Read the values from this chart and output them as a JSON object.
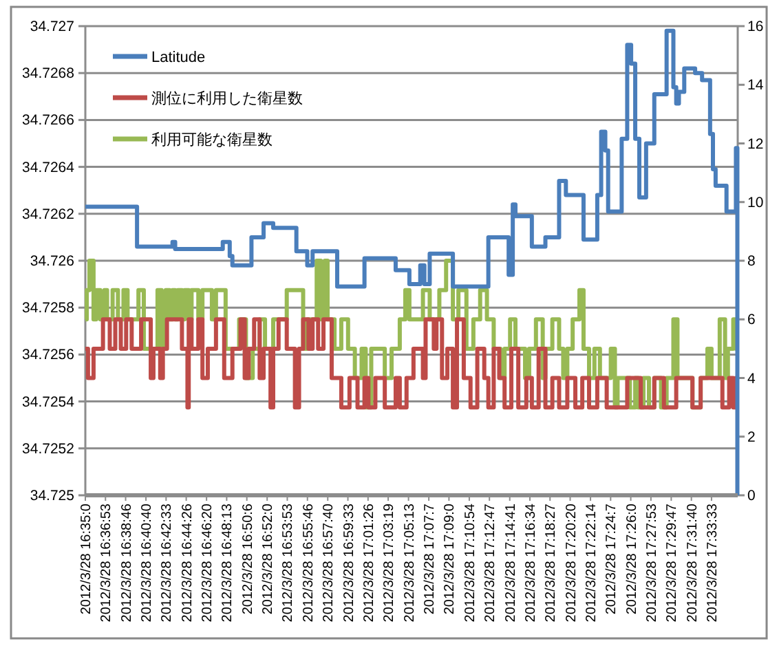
{
  "chart_data": {
    "type": "step",
    "legend": "top left",
    "grid": "y",
    "xlim": [
      "2012-03-28T16:35:00",
      "2012-03-28T17:36:00"
    ],
    "ylim": [
      34.725,
      34.727
    ],
    "y2lim": [
      0,
      16
    ],
    "yticks": [
      34.725,
      34.7252,
      34.7254,
      34.7256,
      34.7258,
      34.726,
      34.7262,
      34.7264,
      34.7266,
      34.7268,
      34.727
    ],
    "y2ticks": [
      0,
      2,
      4,
      6,
      8,
      10,
      12,
      14,
      16
    ],
    "xticks": [
      {
        "value": "2012-03-28T16:35:00",
        "label": "2012/3/28 16:35:0"
      },
      {
        "value": "2012-03-28T16:36:53",
        "label": "2012/3/28 16:36:53"
      },
      {
        "value": "2012-03-28T16:38:46",
        "label": "2012/3/28 16:38:46"
      },
      {
        "value": "2012-03-28T16:40:40",
        "label": "2012/3/28 16:40:40"
      },
      {
        "value": "2012-03-28T16:42:33",
        "label": "2012/3/28 16:42:33"
      },
      {
        "value": "2012-03-28T16:44:26",
        "label": "2012/3/28 16:44:26"
      },
      {
        "value": "2012-03-28T16:46:20",
        "label": "2012/3/28 16:46:20"
      },
      {
        "value": "2012-03-28T16:48:13",
        "label": "2012/3/28 16:48:13"
      },
      {
        "value": "2012-03-28T16:50:06",
        "label": "2012/3/28 16:50:6"
      },
      {
        "value": "2012-03-28T16:52:00",
        "label": "2012/3/28 16:52:0"
      },
      {
        "value": "2012-03-28T16:53:53",
        "label": "2012/3/28 16:53:53"
      },
      {
        "value": "2012-03-28T16:55:46",
        "label": "2012/3/28 16:55:46"
      },
      {
        "value": "2012-03-28T16:57:40",
        "label": "2012/3/28 16:57:40"
      },
      {
        "value": "2012-03-28T16:59:33",
        "label": "2012/3/28 16:59:33"
      },
      {
        "value": "2012-03-28T17:01:26",
        "label": "2012/3/28 17:01:26"
      },
      {
        "value": "2012-03-28T17:03:19",
        "label": "2012/3/28 17:03:19"
      },
      {
        "value": "2012-03-28T17:05:13",
        "label": "2012/3/28 17:05:13"
      },
      {
        "value": "2012-03-28T17:07:07",
        "label": "2012/3/28 17:07:7"
      },
      {
        "value": "2012-03-28T17:09:00",
        "label": "2012/3/28 17:09:0"
      },
      {
        "value": "2012-03-28T17:10:54",
        "label": "2012/3/28 17:10:54"
      },
      {
        "value": "2012-03-28T17:12:47",
        "label": "2012/3/28 17:12:47"
      },
      {
        "value": "2012-03-28T17:14:41",
        "label": "2012/3/28 17:14:41"
      },
      {
        "value": "2012-03-28T17:16:34",
        "label": "2012/3/28 17:16:34"
      },
      {
        "value": "2012-03-28T17:18:27",
        "label": "2012/3/28 17:18:27"
      },
      {
        "value": "2012-03-28T17:20:20",
        "label": "2012/3/28 17:20:20"
      },
      {
        "value": "2012-03-28T17:22:14",
        "label": "2012/3/28 17:22:14"
      },
      {
        "value": "2012-03-28T17:24:07",
        "label": "2012/3/28 17:24:7"
      },
      {
        "value": "2012-03-28T17:26:00",
        "label": "2012/3/28 17:26:0"
      },
      {
        "value": "2012-03-28T17:27:53",
        "label": "2012/3/28 17:27:53"
      },
      {
        "value": "2012-03-28T17:29:47",
        "label": "2012/3/28 17:29:47"
      },
      {
        "value": "2012-03-28T17:31:40",
        "label": "2012/3/28 17:31:40"
      },
      {
        "value": "2012-03-28T17:33:33",
        "label": "2012/3/28 17:33:33"
      }
    ],
    "series": [
      {
        "name": "Latitude",
        "color": "#4a7ebb",
        "x": [
          "2012-03-28T16:35:00",
          "2012-03-28T16:39:50",
          "2012-03-28T16:43:09",
          "2012-03-28T16:43:24",
          "2012-03-28T16:47:51",
          "2012-03-28T16:48:30",
          "2012-03-28T16:48:45",
          "2012-03-28T16:50:32",
          "2012-03-28T16:51:40",
          "2012-03-28T16:52:34",
          "2012-03-28T16:54:44",
          "2012-03-28T16:55:45",
          "2012-03-28T16:56:15",
          "2012-03-28T16:58:33",
          "2012-03-28T17:01:06",
          "2012-03-28T17:04:01",
          "2012-03-28T17:05:18",
          "2012-03-28T17:06:19",
          "2012-03-28T17:06:42",
          "2012-03-28T17:07:12",
          "2012-03-28T17:09:22",
          "2012-03-28T17:12:41",
          "2012-03-28T17:14:35",
          "2012-03-28T17:14:58",
          "2012-03-28T17:15:13",
          "2012-03-28T17:16:45",
          "2012-03-28T17:18:01",
          "2012-03-28T17:19:18",
          "2012-03-28T17:19:56",
          "2012-03-28T17:21:35",
          "2012-03-28T17:22:52",
          "2012-03-28T17:23:14",
          "2012-03-28T17:23:37",
          "2012-03-28T17:23:53",
          "2012-03-28T17:25:09",
          "2012-03-28T17:25:40",
          "2012-03-28T17:26:02",
          "2012-03-28T17:26:25",
          "2012-03-28T17:26:48",
          "2012-03-28T17:27:26",
          "2012-03-28T17:28:12",
          "2012-03-28T17:29:21",
          "2012-03-28T17:29:59",
          "2012-03-28T17:30:15",
          "2012-03-28T17:30:30",
          "2012-03-28T17:31:00",
          "2012-03-28T17:32:01",
          "2012-03-28T17:32:40",
          "2012-03-28T17:33:25",
          "2012-03-28T17:33:41",
          "2012-03-28T17:33:56",
          "2012-03-28T17:34:57",
          "2012-03-28T17:35:50",
          "2012-03-28T17:35:58"
        ],
        "values": [
          34.72623,
          34.72606,
          34.72608,
          34.72605,
          34.72608,
          34.72602,
          34.72598,
          34.7261,
          34.72616,
          34.72614,
          34.72604,
          34.72598,
          34.72604,
          34.72589,
          34.72601,
          34.72596,
          34.7259,
          34.72598,
          34.7259,
          34.72603,
          34.72589,
          34.7261,
          34.72594,
          34.72624,
          34.72619,
          34.72606,
          34.7261,
          34.72634,
          34.72628,
          34.72609,
          34.72628,
          34.72655,
          34.72647,
          34.72621,
          34.72652,
          34.72692,
          34.72684,
          34.72652,
          34.72627,
          34.7265,
          34.72671,
          34.72698,
          34.72674,
          34.72667,
          34.72672,
          34.72682,
          34.7268,
          34.72677,
          34.72654,
          34.72639,
          34.72632,
          34.72621,
          34.72648,
          34.725
        ]
      },
      {
        "name": "測位に利用した衛星数",
        "color": "#be4b48",
        "axis": "y2",
        "x": [
          "2012-03-28T16:35:00",
          "2012-03-28T16:35:15",
          "2012-03-28T16:35:46",
          "2012-03-28T16:36:39",
          "2012-03-28T16:37:17",
          "2012-03-28T16:37:48",
          "2012-03-28T16:38:19",
          "2012-03-28T16:38:49",
          "2012-03-28T16:39:20",
          "2012-03-28T16:40:13",
          "2012-03-28T16:41:07",
          "2012-03-28T16:41:22",
          "2012-03-28T16:42:00",
          "2012-03-28T16:42:15",
          "2012-03-28T16:42:38",
          "2012-03-28T16:44:02",
          "2012-03-28T16:44:33",
          "2012-03-28T16:44:40",
          "2012-03-28T16:44:56",
          "2012-03-28T16:45:34",
          "2012-03-28T16:45:57",
          "2012-03-28T16:46:27",
          "2012-03-28T16:47:13",
          "2012-03-28T16:47:59",
          "2012-03-28T16:48:45",
          "2012-03-28T16:49:31",
          "2012-03-28T16:49:54",
          "2012-03-28T16:50:16",
          "2012-03-28T16:50:47",
          "2012-03-28T16:51:18",
          "2012-03-28T16:51:40",
          "2012-03-28T16:52:19",
          "2012-03-28T16:52:34",
          "2012-03-28T16:53:04",
          "2012-03-28T16:53:50",
          "2012-03-28T16:54:36",
          "2012-03-28T16:54:59",
          "2012-03-28T16:55:22",
          "2012-03-28T16:55:52",
          "2012-03-28T16:56:15",
          "2012-03-28T16:56:46",
          "2012-03-28T16:57:16",
          "2012-03-28T16:58:02",
          "2012-03-28T16:58:56",
          "2012-03-28T16:59:42",
          "2012-03-28T17:00:27",
          "2012-03-28T17:01:06",
          "2012-03-28T17:01:28",
          "2012-03-28T17:02:07",
          "2012-03-28T17:03:00",
          "2012-03-28T17:04:01",
          "2012-03-28T17:04:24",
          "2012-03-28T17:05:02",
          "2012-03-28T17:05:41",
          "2012-03-28T17:06:34",
          "2012-03-28T17:06:49",
          "2012-03-28T17:07:35",
          "2012-03-28T17:07:50",
          "2012-03-28T17:08:21",
          "2012-03-28T17:08:51",
          "2012-03-28T17:09:22",
          "2012-03-28T17:09:45",
          "2012-03-28T17:10:23",
          "2012-03-28T17:11:01",
          "2012-03-28T17:11:39",
          "2012-03-28T17:12:18",
          "2012-03-28T17:12:41",
          "2012-03-28T17:13:11",
          "2012-03-28T17:13:42",
          "2012-03-28T17:14:12",
          "2012-03-28T17:14:50",
          "2012-03-28T17:15:29",
          "2012-03-28T17:16:14",
          "2012-03-28T17:16:45",
          "2012-03-28T17:17:23",
          "2012-03-28T17:18:01",
          "2012-03-28T17:18:40",
          "2012-03-28T17:19:18",
          "2012-03-28T17:20:04",
          "2012-03-28T17:20:49",
          "2012-03-28T17:21:28",
          "2012-03-28T17:22:06",
          "2012-03-28T17:22:52",
          "2012-03-28T17:23:45",
          "2012-03-28T17:25:40",
          "2012-03-28T17:26:56",
          "2012-03-28T17:28:12",
          "2012-03-28T17:29:06",
          "2012-03-28T17:30:15",
          "2012-03-28T17:31:46",
          "2012-03-28T17:32:32",
          "2012-03-28T17:34:34",
          "2012-03-28T17:35:12",
          "2012-03-28T17:35:35",
          "2012-03-28T17:35:50",
          "2012-03-28T17:35:58"
        ],
        "values": [
          5,
          4,
          5,
          6,
          5,
          6,
          5,
          6,
          5,
          6,
          4,
          5,
          4,
          5,
          6,
          5,
          3,
          6,
          5,
          6,
          4,
          5,
          6,
          4,
          5,
          6,
          4,
          5,
          6,
          4,
          5,
          3,
          5,
          6,
          5,
          3,
          5,
          6,
          5,
          6,
          5,
          6,
          4,
          3,
          4,
          3,
          4,
          3,
          4,
          3,
          4,
          3,
          4,
          5,
          4,
          6,
          5,
          6,
          4,
          5,
          3,
          6,
          4,
          3,
          5,
          4,
          3,
          5,
          4,
          3,
          5,
          3,
          4,
          3,
          5,
          3,
          4,
          3,
          4,
          3,
          4,
          3,
          4,
          3,
          4,
          3,
          4,
          3,
          4,
          3,
          4,
          3,
          4,
          3,
          4,
          4
        ]
      },
      {
        "name": "利用可能な衛星数",
        "color": "#98b954",
        "axis": "y2",
        "x": [
          "2012-03-28T16:35:00",
          "2012-03-28T16:35:08",
          "2012-03-28T16:35:23",
          "2012-03-28T16:35:46",
          "2012-03-28T16:36:01",
          "2012-03-28T16:36:24",
          "2012-03-28T16:36:47",
          "2012-03-28T16:37:02",
          "2012-03-28T16:37:33",
          "2012-03-28T16:38:03",
          "2012-03-28T16:38:34",
          "2012-03-28T16:38:57",
          "2012-03-28T16:39:58",
          "2012-03-28T16:40:28",
          "2012-03-28T16:41:45",
          "2012-03-28T16:42:08",
          "2012-03-28T16:42:31",
          "2012-03-28T16:42:53",
          "2012-03-28T16:43:09",
          "2012-03-28T16:43:24",
          "2012-03-28T16:43:39",
          "2012-03-28T16:44:02",
          "2012-03-28T16:44:17",
          "2012-03-28T16:44:40",
          "2012-03-28T16:44:56",
          "2012-03-28T16:45:34",
          "2012-03-28T16:45:57",
          "2012-03-28T16:46:50",
          "2012-03-28T16:47:13",
          "2012-03-28T16:48:07",
          "2012-03-28T16:49:23",
          "2012-03-28T16:50:01",
          "2012-03-28T16:50:39",
          "2012-03-28T16:51:18",
          "2012-03-28T16:51:48",
          "2012-03-28T16:52:34",
          "2012-03-28T16:53:50",
          "2012-03-28T16:55:22",
          "2012-03-28T16:55:45",
          "2012-03-28T16:56:38",
          "2012-03-28T16:57:01",
          "2012-03-28T16:57:24",
          "2012-03-28T16:57:39",
          "2012-03-28T16:58:18",
          "2012-03-28T16:58:56",
          "2012-03-28T16:59:34",
          "2012-03-28T17:00:12",
          "2012-03-28T17:00:50",
          "2012-03-28T17:01:13",
          "2012-03-28T17:01:44",
          "2012-03-28T17:03:00",
          "2012-03-28T17:03:38",
          "2012-03-28T17:04:24",
          "2012-03-28T17:04:55",
          "2012-03-28T17:05:18",
          "2012-03-28T17:06:34",
          "2012-03-28T17:07:12",
          "2012-03-28T17:08:06",
          "2012-03-28T17:08:44",
          "2012-03-28T17:09:22",
          "2012-03-28T17:09:53",
          "2012-03-28T17:10:38",
          "2012-03-28T17:11:17",
          "2012-03-28T17:11:55",
          "2012-03-28T17:12:33",
          "2012-03-28T17:13:11",
          "2012-03-28T17:13:49",
          "2012-03-28T17:14:12",
          "2012-03-28T17:14:43",
          "2012-03-28T17:15:13",
          "2012-03-28T17:16:07",
          "2012-03-28T17:16:30",
          "2012-03-28T17:17:08",
          "2012-03-28T17:17:46",
          "2012-03-28T17:18:01",
          "2012-03-28T17:18:40",
          "2012-03-28T17:19:18",
          "2012-03-28T17:19:41",
          "2012-03-28T17:20:04",
          "2012-03-28T17:20:34",
          "2012-03-28T17:21:12",
          "2012-03-28T17:21:35",
          "2012-03-28T17:22:06",
          "2012-03-28T17:22:36",
          "2012-03-28T17:23:07",
          "2012-03-28T17:24:08",
          "2012-03-28T17:24:31",
          "2012-03-28T17:24:46",
          "2012-03-28T17:25:55",
          "2012-03-28T17:26:25",
          "2012-03-28T17:26:41",
          "2012-03-28T17:27:11",
          "2012-03-28T17:27:42",
          "2012-03-28T17:28:12",
          "2012-03-28T17:28:50",
          "2012-03-28T17:29:21",
          "2012-03-28T17:29:59",
          "2012-03-28T17:30:22",
          "2012-03-28T17:31:46",
          "2012-03-28T17:32:32",
          "2012-03-28T17:33:10",
          "2012-03-28T17:33:33",
          "2012-03-28T17:34:19",
          "2012-03-28T17:34:49",
          "2012-03-28T17:35:05",
          "2012-03-28T17:35:35",
          "2012-03-28T17:35:50",
          "2012-03-28T17:35:58"
        ],
        "values": [
          6,
          7,
          8,
          6,
          7,
          6,
          7,
          6,
          7,
          6,
          7,
          6,
          7,
          5,
          7,
          5,
          7,
          6,
          7,
          6,
          7,
          6,
          7,
          6,
          7,
          6,
          7,
          6,
          7,
          5,
          6,
          4,
          5,
          6,
          5,
          6,
          7,
          5,
          6,
          8,
          6,
          8,
          6,
          5,
          6,
          5,
          4,
          5,
          3,
          5,
          4,
          5,
          6,
          7,
          6,
          7,
          6,
          7,
          8,
          6,
          7,
          5,
          6,
          7,
          6,
          5,
          4,
          5,
          6,
          5,
          4,
          5,
          6,
          4,
          5,
          6,
          5,
          4,
          5,
          6,
          7,
          5,
          4,
          5,
          4,
          5,
          3,
          4,
          3,
          4,
          3,
          4,
          3,
          4,
          3,
          4,
          6,
          4,
          3,
          4,
          5,
          4,
          6,
          4,
          5,
          6,
          5,
          5
        ]
      }
    ]
  }
}
